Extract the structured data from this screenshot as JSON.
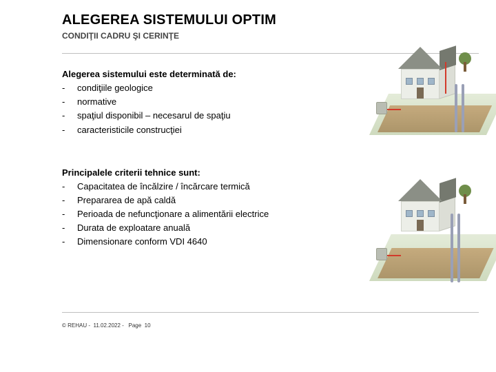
{
  "title": "ALEGEREA SISTEMULUI OPTIM",
  "subtitle": "CONDIŢII CADRU ŞI CERINŢE",
  "section1": {
    "heading": "Alegerea sistemului este determinată de:",
    "items": [
      "condiţiile geologice",
      "normative",
      "spaţiul disponibil – necesarul de spaţiu",
      "caracteristicile construcţiei"
    ]
  },
  "section2": {
    "heading": "Principalele criterii tehnice sunt:",
    "items": [
      "Capacitatea de încălzire / încărcare termică",
      "Prepararea de apă caldă",
      "Perioada de nefuncţionare a alimentării electrice",
      "Durata de exploatare anuală",
      "Dimensionare conform VDI 4640"
    ]
  },
  "footer": {
    "copyright": "© REHAU",
    "date": "11.02.2022",
    "page_label": "Page",
    "page_number": "10"
  },
  "colors": {
    "text": "#000000",
    "subtitle": "#444444",
    "divider": "#bfbfbf",
    "grass": "#c6d4b3",
    "soil": "#a6895b",
    "wall": "#eceee8",
    "roof": "#8b8f86",
    "pipe_red": "#d23a2a",
    "borehole": "#9aa0b6"
  },
  "illustrations": [
    {
      "type": "isometric-house-ground-loop",
      "note": "heat pump with horizontal collector"
    },
    {
      "type": "isometric-house-borehole",
      "note": "heat pump with vertical boreholes"
    }
  ]
}
